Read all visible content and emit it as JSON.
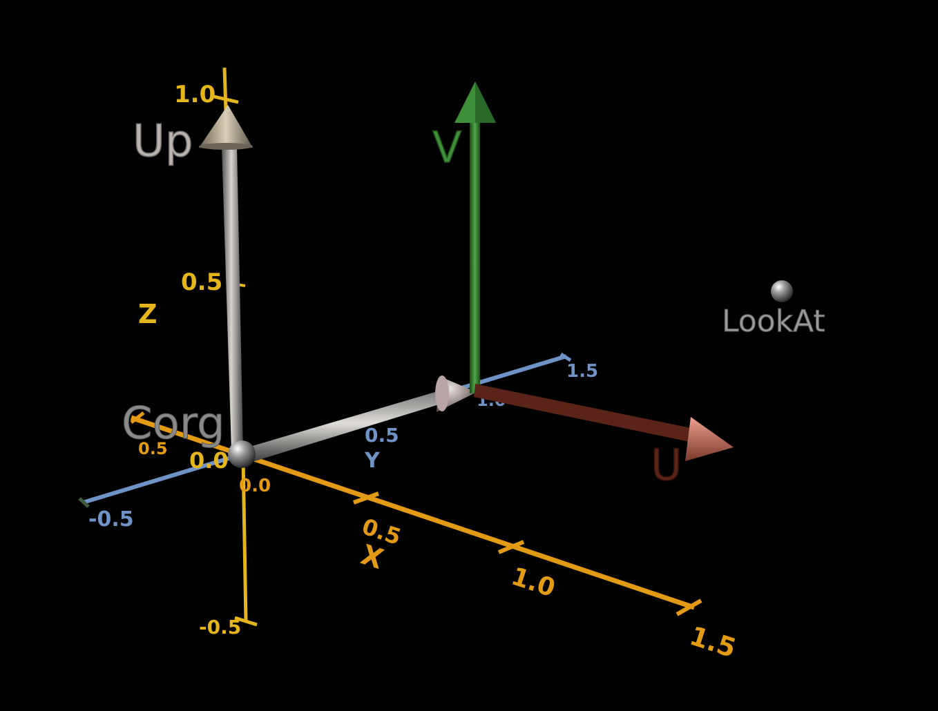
{
  "axes": {
    "x": {
      "name": "X",
      "ticks": [
        "0.5",
        "1.0",
        "1.5"
      ],
      "neg_tick": "0.5"
    },
    "y": {
      "name": "Y",
      "ticks": [
        "0.5",
        "1.0",
        "1.5"
      ],
      "neg_tick": "-0.5"
    },
    "z": {
      "name": "Z",
      "ticks": [
        "0.5",
        "1.0"
      ],
      "neg_tick": "-0.5"
    },
    "origin_labels": [
      "0.0",
      "0.0"
    ]
  },
  "vectors": {
    "up": "Up",
    "u": "U",
    "v": "V"
  },
  "points": {
    "corg": "Corg",
    "lookat": "LookAt"
  },
  "colors": {
    "background": "#000000",
    "x_axis": "#e39a14",
    "y_axis": "#6f93c6",
    "z_axis": "#e4b51c",
    "up_vector": "#a29e98",
    "v_vector": "#3f8f3a",
    "u_vector": "#5a2418",
    "u_cone": "#d88070",
    "label_gray": "#9a9a9a"
  }
}
